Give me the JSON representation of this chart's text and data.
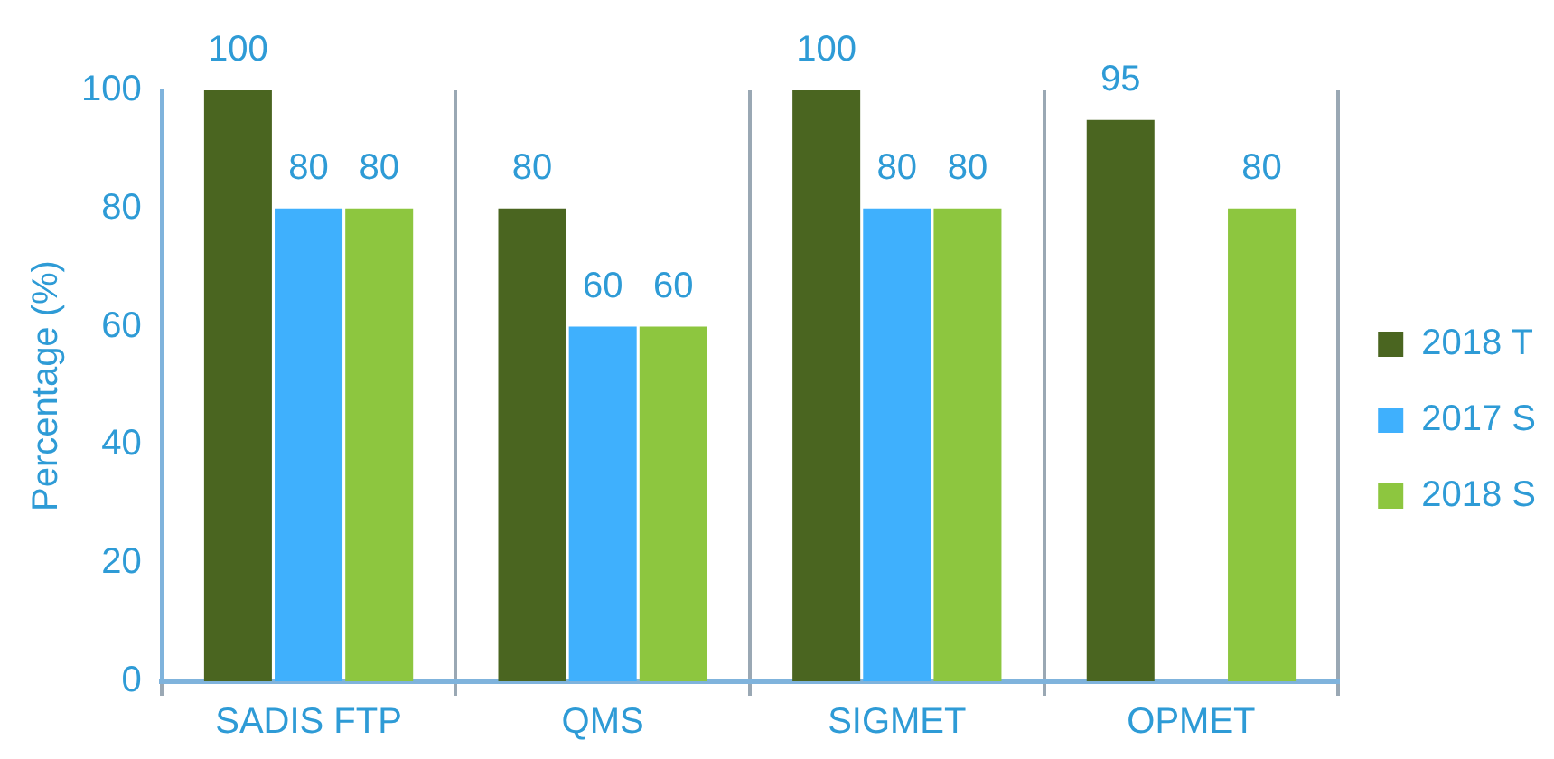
{
  "chart_data": {
    "type": "bar",
    "ylabel": "Percentage (%)",
    "categories": [
      "SADIS FTP",
      "QMS",
      "SIGMET",
      "OPMET"
    ],
    "series": [
      {
        "name": "2018 T",
        "color": "#4a6520",
        "values": [
          100,
          80,
          100,
          95
        ]
      },
      {
        "name": "2017 S",
        "color": "#3fb0fd",
        "values": [
          80,
          60,
          80,
          null
        ]
      },
      {
        "name": "2018 S",
        "color": "#8dc63f",
        "values": [
          80,
          60,
          80,
          80
        ]
      }
    ],
    "ylim": [
      0,
      100
    ],
    "yticks": [
      0,
      20,
      40,
      60,
      80,
      100
    ],
    "grid": "x",
    "legend": "right",
    "data_labels": true
  }
}
